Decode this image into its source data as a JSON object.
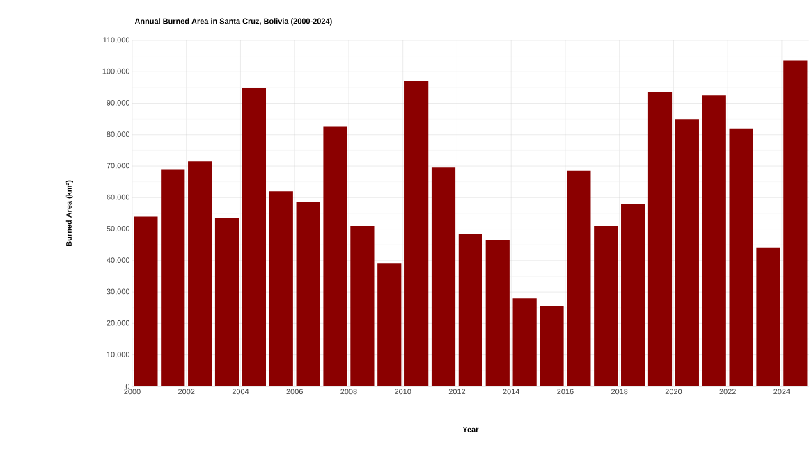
{
  "chart_data": {
    "type": "bar",
    "title": "Annual Burned Area in Santa Cruz, Bolivia (2000-2024)",
    "xlabel": "Year",
    "ylabel": "Burned Area (km²)",
    "x": [
      2000.5,
      2001.5,
      2002.5,
      2003.5,
      2004.5,
      2005.5,
      2006.5,
      2007.5,
      2008.5,
      2009.5,
      2010.5,
      2011.5,
      2012.5,
      2013.5,
      2014.5,
      2015.5,
      2016.5,
      2017.5,
      2018.5,
      2019.5,
      2020.5,
      2021.5,
      2022.5,
      2023.5,
      2024.5
    ],
    "values": [
      54000,
      69000,
      71500,
      53500,
      95000,
      62000,
      58500,
      82500,
      51000,
      39000,
      97000,
      69500,
      48500,
      46500,
      28000,
      25500,
      68500,
      51000,
      58000,
      93500,
      85000,
      92500,
      82000,
      44000,
      103500
    ],
    "color": "#8b0000",
    "xlim": [
      2000,
      2025
    ],
    "ylim": [
      0,
      110000
    ],
    "xticks": [
      2000,
      2002,
      2004,
      2006,
      2008,
      2010,
      2012,
      2014,
      2016,
      2018,
      2020,
      2022,
      2024
    ],
    "yticks": [
      {
        "value": 0,
        "label": "0"
      },
      {
        "value": 10000,
        "label": "10,000"
      },
      {
        "value": 20000,
        "label": "20,000"
      },
      {
        "value": 30000,
        "label": "30,000"
      },
      {
        "value": 40000,
        "label": "40,000"
      },
      {
        "value": 50000,
        "label": "50,000"
      },
      {
        "value": 60000,
        "label": "60,000"
      },
      {
        "value": 70000,
        "label": "70,000"
      },
      {
        "value": 80000,
        "label": "80,000"
      },
      {
        "value": 90000,
        "label": "90,000"
      },
      {
        "value": 100000,
        "label": "100,000"
      },
      {
        "value": 110000,
        "label": "110,000"
      }
    ],
    "grid": true
  }
}
